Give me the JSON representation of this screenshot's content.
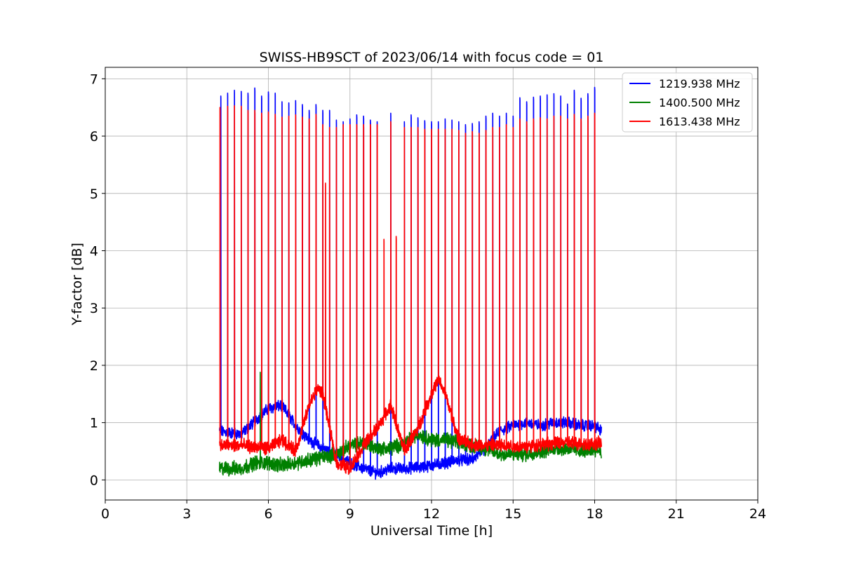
{
  "chart_data": {
    "type": "line",
    "title": "SWISS-HB9SCT of 2023/06/14 with focus code = 01",
    "xlabel": "Universal Time [h]",
    "ylabel": "Y-factor [dB]",
    "xlim": [
      0,
      24
    ],
    "ylim": [
      -0.35,
      7.2
    ],
    "xticks": [
      0,
      3,
      6,
      9,
      12,
      15,
      18,
      21,
      24
    ],
    "yticks": [
      0,
      1,
      2,
      3,
      4,
      5,
      6,
      7
    ],
    "grid": true,
    "legend_position": "top-right",
    "data_start_h": 4.2,
    "data_end_h": 18.25,
    "series": [
      {
        "name": "1219.938 MHz",
        "color": "#0000ff",
        "baseline": [
          [
            4.2,
            0.85
          ],
          [
            5.0,
            0.8
          ],
          [
            6.0,
            1.25
          ],
          [
            6.5,
            1.3
          ],
          [
            7.0,
            0.95
          ],
          [
            7.5,
            0.7
          ],
          [
            8.0,
            0.55
          ],
          [
            8.5,
            0.45
          ],
          [
            9.0,
            0.3
          ],
          [
            9.5,
            0.2
          ],
          [
            10.0,
            0.12
          ],
          [
            10.5,
            0.2
          ],
          [
            11.0,
            0.2
          ],
          [
            11.5,
            0.22
          ],
          [
            12.0,
            0.25
          ],
          [
            12.5,
            0.3
          ],
          [
            13.0,
            0.35
          ],
          [
            13.5,
            0.35
          ],
          [
            14.0,
            0.55
          ],
          [
            14.5,
            0.85
          ],
          [
            15.0,
            0.95
          ],
          [
            15.5,
            1.0
          ],
          [
            16.0,
            0.95
          ],
          [
            16.5,
            1.0
          ],
          [
            17.0,
            1.0
          ],
          [
            17.5,
            0.95
          ],
          [
            18.0,
            0.95
          ],
          [
            18.25,
            0.85
          ]
        ],
        "noise": 0.08,
        "spikes": [
          [
            4.25,
            6.7
          ],
          [
            4.5,
            6.75
          ],
          [
            4.75,
            6.8
          ],
          [
            5.0,
            6.78
          ],
          [
            5.25,
            6.75
          ],
          [
            5.5,
            6.84
          ],
          [
            5.75,
            6.7
          ],
          [
            6.0,
            6.77
          ],
          [
            6.25,
            6.75
          ],
          [
            6.5,
            6.6
          ],
          [
            6.75,
            6.58
          ],
          [
            7.0,
            6.62
          ],
          [
            7.25,
            6.55
          ],
          [
            7.5,
            6.45
          ],
          [
            7.75,
            6.55
          ],
          [
            8.0,
            6.45
          ],
          [
            8.25,
            6.45
          ],
          [
            8.5,
            6.28
          ],
          [
            8.75,
            6.25
          ],
          [
            9.0,
            6.3
          ],
          [
            9.25,
            6.37
          ],
          [
            9.5,
            6.35
          ],
          [
            9.75,
            6.28
          ],
          [
            10.0,
            6.25
          ],
          [
            10.5,
            6.4
          ],
          [
            11.0,
            6.25
          ],
          [
            11.25,
            6.37
          ],
          [
            11.5,
            6.32
          ],
          [
            11.75,
            6.27
          ],
          [
            12.0,
            6.25
          ],
          [
            12.25,
            6.25
          ],
          [
            12.5,
            6.3
          ],
          [
            12.75,
            6.28
          ],
          [
            13.0,
            6.25
          ],
          [
            13.25,
            6.2
          ],
          [
            13.5,
            6.22
          ],
          [
            13.75,
            6.25
          ],
          [
            14.0,
            6.35
          ],
          [
            14.25,
            6.4
          ],
          [
            14.5,
            6.35
          ],
          [
            14.75,
            6.4
          ],
          [
            15.0,
            6.35
          ],
          [
            15.25,
            6.67
          ],
          [
            15.5,
            6.6
          ],
          [
            15.75,
            6.68
          ],
          [
            16.0,
            6.7
          ],
          [
            16.25,
            6.72
          ],
          [
            16.5,
            6.74
          ],
          [
            16.75,
            6.7
          ],
          [
            17.0,
            6.56
          ],
          [
            17.25,
            6.8
          ],
          [
            17.5,
            6.66
          ],
          [
            17.75,
            6.74
          ],
          [
            18.0,
            6.85
          ]
        ]
      },
      {
        "name": "1400.500 MHz",
        "color": "#008000",
        "baseline": [
          [
            4.2,
            0.2
          ],
          [
            5.0,
            0.2
          ],
          [
            5.5,
            0.3
          ],
          [
            6.0,
            0.3
          ],
          [
            6.5,
            0.25
          ],
          [
            7.0,
            0.3
          ],
          [
            7.5,
            0.35
          ],
          [
            8.0,
            0.4
          ],
          [
            8.5,
            0.45
          ],
          [
            9.0,
            0.6
          ],
          [
            9.5,
            0.65
          ],
          [
            10.0,
            0.55
          ],
          [
            10.5,
            0.55
          ],
          [
            11.0,
            0.65
          ],
          [
            11.5,
            0.8
          ],
          [
            12.0,
            0.7
          ],
          [
            12.5,
            0.7
          ],
          [
            13.0,
            0.65
          ],
          [
            13.5,
            0.6
          ],
          [
            14.0,
            0.55
          ],
          [
            14.5,
            0.45
          ],
          [
            15.0,
            0.45
          ],
          [
            15.5,
            0.45
          ],
          [
            16.0,
            0.5
          ],
          [
            16.5,
            0.55
          ],
          [
            17.0,
            0.55
          ],
          [
            17.5,
            0.5
          ],
          [
            18.0,
            0.55
          ],
          [
            18.25,
            0.5
          ]
        ],
        "noise": 0.1,
        "spikes": [
          [
            5.7,
            1.88
          ]
        ]
      },
      {
        "name": "1613.438 MHz",
        "color": "#ff0000",
        "baseline": [
          [
            4.2,
            0.6
          ],
          [
            5.0,
            0.6
          ],
          [
            6.0,
            0.55
          ],
          [
            6.5,
            0.7
          ],
          [
            7.0,
            0.5
          ],
          [
            7.5,
            1.3
          ],
          [
            7.8,
            1.6
          ],
          [
            8.0,
            1.5
          ],
          [
            8.5,
            0.3
          ],
          [
            9.0,
            0.2
          ],
          [
            9.5,
            0.6
          ],
          [
            10.0,
            0.9
          ],
          [
            10.5,
            1.3
          ],
          [
            11.0,
            0.5
          ],
          [
            11.5,
            0.9
          ],
          [
            12.0,
            1.5
          ],
          [
            12.25,
            1.75
          ],
          [
            12.5,
            1.5
          ],
          [
            13.0,
            0.7
          ],
          [
            13.5,
            0.62
          ],
          [
            14.0,
            0.6
          ],
          [
            15.0,
            0.6
          ],
          [
            15.5,
            0.58
          ],
          [
            16.0,
            0.62
          ],
          [
            17.0,
            0.65
          ],
          [
            18.0,
            0.62
          ],
          [
            18.25,
            0.65
          ]
        ],
        "noise": 0.09,
        "spikes": [
          [
            4.22,
            6.5
          ],
          [
            4.5,
            6.52
          ],
          [
            4.75,
            6.53
          ],
          [
            5.0,
            6.52
          ],
          [
            5.25,
            6.45
          ],
          [
            5.5,
            6.45
          ],
          [
            5.75,
            6.4
          ],
          [
            6.0,
            6.42
          ],
          [
            6.25,
            6.38
          ],
          [
            6.5,
            6.33
          ],
          [
            6.75,
            6.35
          ],
          [
            7.0,
            6.37
          ],
          [
            7.25,
            6.33
          ],
          [
            7.5,
            6.3
          ],
          [
            7.75,
            6.38
          ],
          [
            8.0,
            6.2
          ],
          [
            8.1,
            5.18
          ],
          [
            8.25,
            6.15
          ],
          [
            8.5,
            6.15
          ],
          [
            8.75,
            6.2
          ],
          [
            9.0,
            6.2
          ],
          [
            9.25,
            6.2
          ],
          [
            9.5,
            6.2
          ],
          [
            9.75,
            6.2
          ],
          [
            10.0,
            6.2
          ],
          [
            10.25,
            4.2
          ],
          [
            10.5,
            6.25
          ],
          [
            10.7,
            4.25
          ],
          [
            11.0,
            6.15
          ],
          [
            11.25,
            6.15
          ],
          [
            11.5,
            6.15
          ],
          [
            11.75,
            6.12
          ],
          [
            12.0,
            6.12
          ],
          [
            12.25,
            6.12
          ],
          [
            12.5,
            6.12
          ],
          [
            12.75,
            6.12
          ],
          [
            13.0,
            6.1
          ],
          [
            13.25,
            6.05
          ],
          [
            13.5,
            6.08
          ],
          [
            13.75,
            6.05
          ],
          [
            14.0,
            6.1
          ],
          [
            14.25,
            6.15
          ],
          [
            14.5,
            6.15
          ],
          [
            14.75,
            6.2
          ],
          [
            15.0,
            6.15
          ],
          [
            15.25,
            6.3
          ],
          [
            15.5,
            6.25
          ],
          [
            15.75,
            6.3
          ],
          [
            16.0,
            6.32
          ],
          [
            16.25,
            6.3
          ],
          [
            16.5,
            6.35
          ],
          [
            16.75,
            6.35
          ],
          [
            17.0,
            6.3
          ],
          [
            17.25,
            6.38
          ],
          [
            17.5,
            6.3
          ],
          [
            17.75,
            6.35
          ],
          [
            18.0,
            6.4
          ]
        ]
      }
    ]
  }
}
